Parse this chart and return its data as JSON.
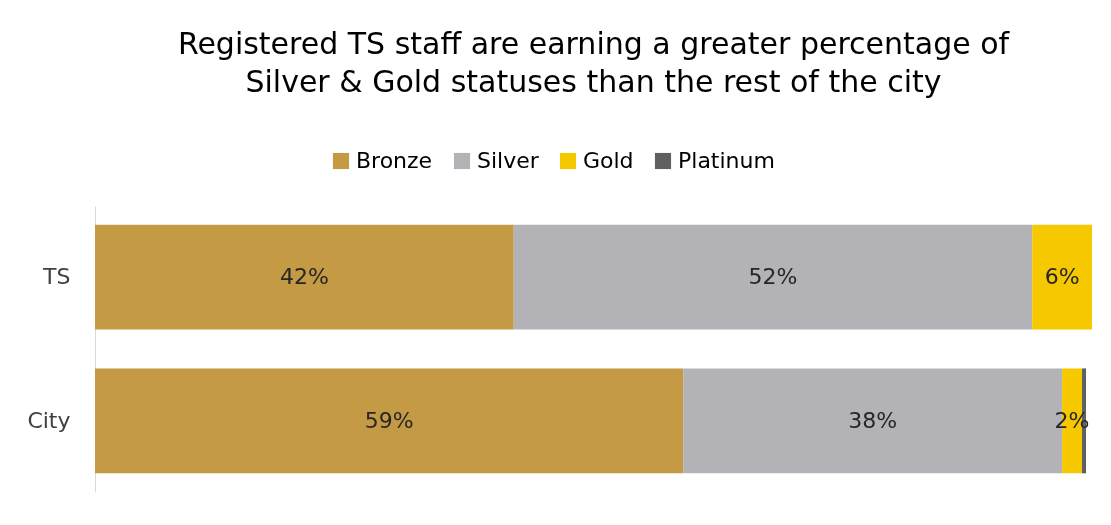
{
  "chart_data": {
    "type": "bar",
    "orientation": "horizontal",
    "stacked": true,
    "title": "Registered TS staff are earning a greater percentage of\nSilver & Gold statuses than the rest of the city",
    "categories": [
      "TS",
      "City"
    ],
    "xlim": [
      0,
      100
    ],
    "tick_labels": "y",
    "legend": "top",
    "series": [
      {
        "name": "Bronze",
        "color": "#c49a45",
        "values": [
          42,
          59
        ],
        "value_labels": [
          "42%",
          "59%"
        ]
      },
      {
        "name": "Silver",
        "color": "#b3b2b7",
        "values": [
          52,
          38
        ],
        "value_labels": [
          "52%",
          "38%"
        ]
      },
      {
        "name": "Gold",
        "color": "#f5c800",
        "values": [
          6,
          2
        ],
        "value_labels": [
          "6%",
          "2%"
        ]
      },
      {
        "name": "Platinum",
        "color": "#606060",
        "values": [
          null,
          0.4
        ],
        "value_labels": [
          null,
          null
        ]
      }
    ]
  }
}
